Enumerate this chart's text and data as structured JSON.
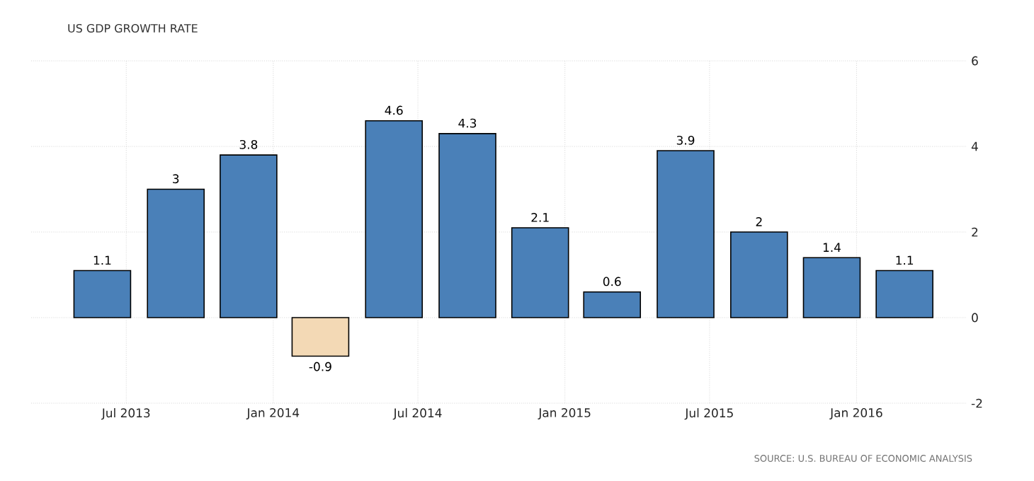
{
  "chart_data": {
    "type": "bar",
    "title": "US GDP GROWTH RATE",
    "x": [
      "2013-06-01",
      "2013-09-01",
      "2013-12-01",
      "2014-03-01",
      "2014-06-01",
      "2014-09-01",
      "2014-12-01",
      "2015-03-01",
      "2015-06-01",
      "2015-09-01",
      "2015-12-01",
      "2016-03-01"
    ],
    "values": [
      1.1,
      3,
      3.8,
      -0.9,
      4.6,
      4.3,
      2.1,
      0.6,
      3.9,
      2,
      1.4,
      1.1
    ],
    "colors": [
      "#4a80b8",
      "#4a80b8",
      "#4a80b8",
      "#f3d9b5",
      "#4a80b8",
      "#4a80b8",
      "#4a80b8",
      "#4a80b8",
      "#4a80b8",
      "#4a80b8",
      "#4a80b8",
      "#4a80b8"
    ],
    "data_labels": true,
    "xlim": [
      "2013-03-04",
      "2016-05-17"
    ],
    "xticks": [
      {
        "value": "2013-07-01",
        "label": "Jul 2013"
      },
      {
        "value": "2014-01-01",
        "label": "Jan 2014"
      },
      {
        "value": "2014-07-01",
        "label": "Jul 2014"
      },
      {
        "value": "2015-01-01",
        "label": "Jan 2015"
      },
      {
        "value": "2015-07-01",
        "label": "Jul 2015"
      },
      {
        "value": "2016-01-01",
        "label": "Jan 2016"
      }
    ],
    "ylim": [
      -2,
      6
    ],
    "yticks": [
      -2,
      0,
      2,
      4,
      6
    ],
    "grid": true,
    "annotations": [
      "SOURCE: U.S. BUREAU OF ECONOMIC ANALYSIS"
    ]
  }
}
